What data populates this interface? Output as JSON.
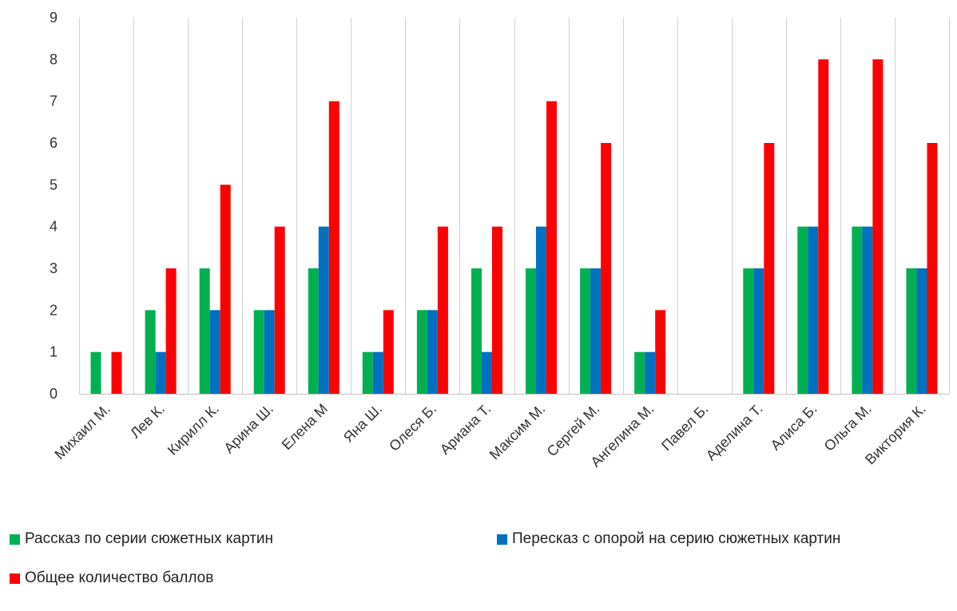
{
  "chart_data": {
    "type": "bar",
    "title": "",
    "xlabel": "",
    "ylabel": "",
    "ylim": [
      0,
      9
    ],
    "yticks": [
      "0",
      "1",
      "2",
      "3",
      "4",
      "5",
      "6",
      "7",
      "8",
      "9"
    ],
    "grid": "vertical",
    "legend_position": "bottom",
    "categories": [
      "Михаил М.",
      "Лев К.",
      "Кирилл К.",
      "Арина Ш.",
      "Елена М",
      "Яна Ш.",
      "Олеся Б.",
      "Ариана Т.",
      "Максим М.",
      "Сергей М.",
      "Ангелина М.",
      "Павел Б.",
      "Аделина Т.",
      "Алиса Б.",
      "Ольга М.",
      "Виктория К."
    ],
    "series": [
      {
        "name": "Рассказ по серии сюжетных картин",
        "color": "#00b050",
        "values": [
          1,
          2,
          3,
          2,
          3,
          1,
          2,
          3,
          3,
          3,
          1,
          0,
          3,
          4,
          4,
          3
        ]
      },
      {
        "name": "Пересказ с опорой на серию сюжетных картин",
        "color": "#0070c0",
        "values": [
          0,
          1,
          2,
          2,
          4,
          1,
          2,
          1,
          4,
          3,
          1,
          0,
          3,
          4,
          4,
          3
        ]
      },
      {
        "name": "Общее количество баллов",
        "color": "#ff0000",
        "values": [
          1,
          3,
          5,
          4,
          7,
          2,
          4,
          4,
          7,
          6,
          2,
          0,
          6,
          8,
          8,
          6
        ]
      }
    ]
  }
}
